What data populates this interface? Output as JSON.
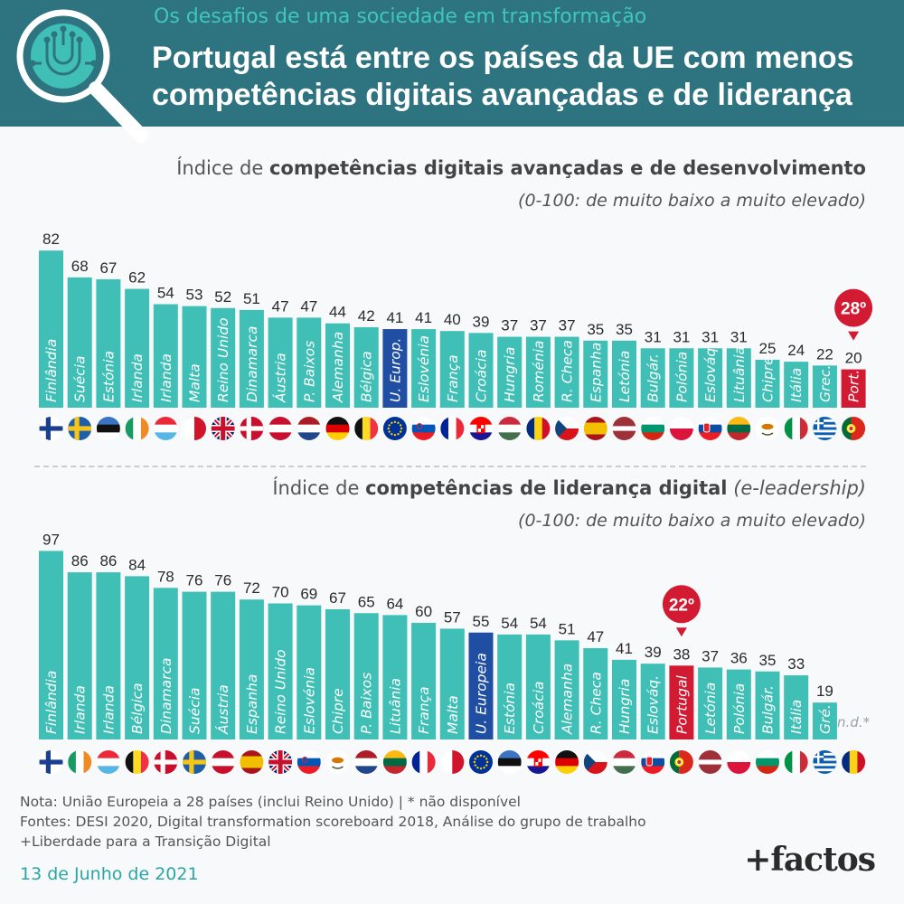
{
  "header": {
    "kicker": "Os desafios de uma sociedade em transformação",
    "title_line1": "Portugal está entre os países da UE com menos",
    "title_line2": "competências digitais avançadas e de liderança",
    "icon": "magnifier-circuit-icon"
  },
  "colors": {
    "teal_bar": "#3fbfb5",
    "eu_bar": "#1f4ea3",
    "portugal_bar": "#d21a33",
    "header_bg": "#2e7480",
    "kicker": "#3fc6bd"
  },
  "chart_data": [
    {
      "type": "bar",
      "title_prefix": "Índice de ",
      "title_bold": "competências digitais avançadas e de desenvolvimento",
      "title_suffix": "",
      "subtitle": "(0-100: de muito baixo a muito elevado)",
      "ylim": [
        0,
        100
      ],
      "categories": [
        "Finlândia",
        "Suécia",
        "Estónia",
        "Irlanda",
        "Irlanda",
        "Malta",
        "Reino Unido",
        "Dinamarca",
        "Áustria",
        "P. Baixos",
        "Alemanha",
        "Bélgica",
        "U. Europ.",
        "Eslovénia",
        "França",
        "Croácia",
        "Hungria",
        "Roménia",
        "R. Checa",
        "Espanha",
        "Letónia",
        "Bulgár.",
        "Polónia",
        "Eslováq.",
        "Lituânia",
        "Chipre",
        "Itália",
        "Grec.",
        "Port."
      ],
      "values": [
        82,
        68,
        67,
        62,
        54,
        53,
        52,
        51,
        47,
        47,
        44,
        42,
        41,
        41,
        40,
        39,
        37,
        37,
        37,
        35,
        35,
        31,
        31,
        31,
        31,
        25,
        24,
        22,
        20
      ],
      "flags": [
        "fi",
        "se",
        "ee",
        "ie",
        "lu",
        "mt",
        "gb",
        "dk",
        "at",
        "nl",
        "de",
        "be",
        "eu",
        "si",
        "fr",
        "hr",
        "hu",
        "ro",
        "cz",
        "es",
        "lv",
        "bg",
        "pl",
        "sk",
        "lt",
        "cy",
        "it",
        "gr",
        "pt"
      ],
      "highlight": {
        "index": 28,
        "label": "28º"
      },
      "eu_index": 12
    },
    {
      "type": "bar",
      "title_prefix": "Índice de ",
      "title_bold": "competências de liderança digital",
      "title_suffix": " (e-leadership)",
      "subtitle": "(0-100: de muito baixo a muito elevado)",
      "ylim": [
        0,
        100
      ],
      "categories": [
        "Finlândia",
        "Irlanda",
        "Irlanda",
        "Bélgica",
        "Dinamarca",
        "Suécia",
        "Áustria",
        "Espanha",
        "Reino Unido",
        "Eslovénia",
        "Chipre",
        "P. Baixos",
        "Lituânia",
        "França",
        "Malta",
        "U. Europeia",
        "Estónia",
        "Croácia",
        "Alemanha",
        "R. Checa",
        "Hungria",
        "Eslováq.",
        "Portugal",
        "Letónia",
        "Polónia",
        "Bulgár.",
        "Itália",
        "Gré.",
        ""
      ],
      "values": [
        97,
        86,
        86,
        84,
        78,
        76,
        76,
        72,
        70,
        69,
        67,
        65,
        64,
        60,
        57,
        55,
        54,
        54,
        51,
        47,
        41,
        39,
        38,
        37,
        36,
        35,
        33,
        19,
        null
      ],
      "flags": [
        "fi",
        "ie",
        "lu",
        "be",
        "dk",
        "se",
        "at",
        "es",
        "gb",
        "si",
        "cy",
        "nl",
        "lt",
        "fr",
        "mt",
        "eu",
        "ee",
        "hr",
        "de",
        "cz",
        "hu",
        "sk",
        "pt",
        "lv",
        "pl",
        "bg",
        "it",
        "gr",
        "ro"
      ],
      "highlight": {
        "index": 22,
        "label": "22º"
      },
      "eu_index": 15,
      "na_label": "n.d.*"
    }
  ],
  "footer": {
    "note1": "Nota: União Europeia a 28 países (inclui Reino Unido) | * não disponível",
    "note2": "Fontes: DESI 2020, Digital transformation scoreboard 2018, Análise do grupo de trabalho",
    "note3": "+Liberdade para a Transição Digital",
    "date": "13 de Junho de 2021",
    "logo": "+factos"
  }
}
